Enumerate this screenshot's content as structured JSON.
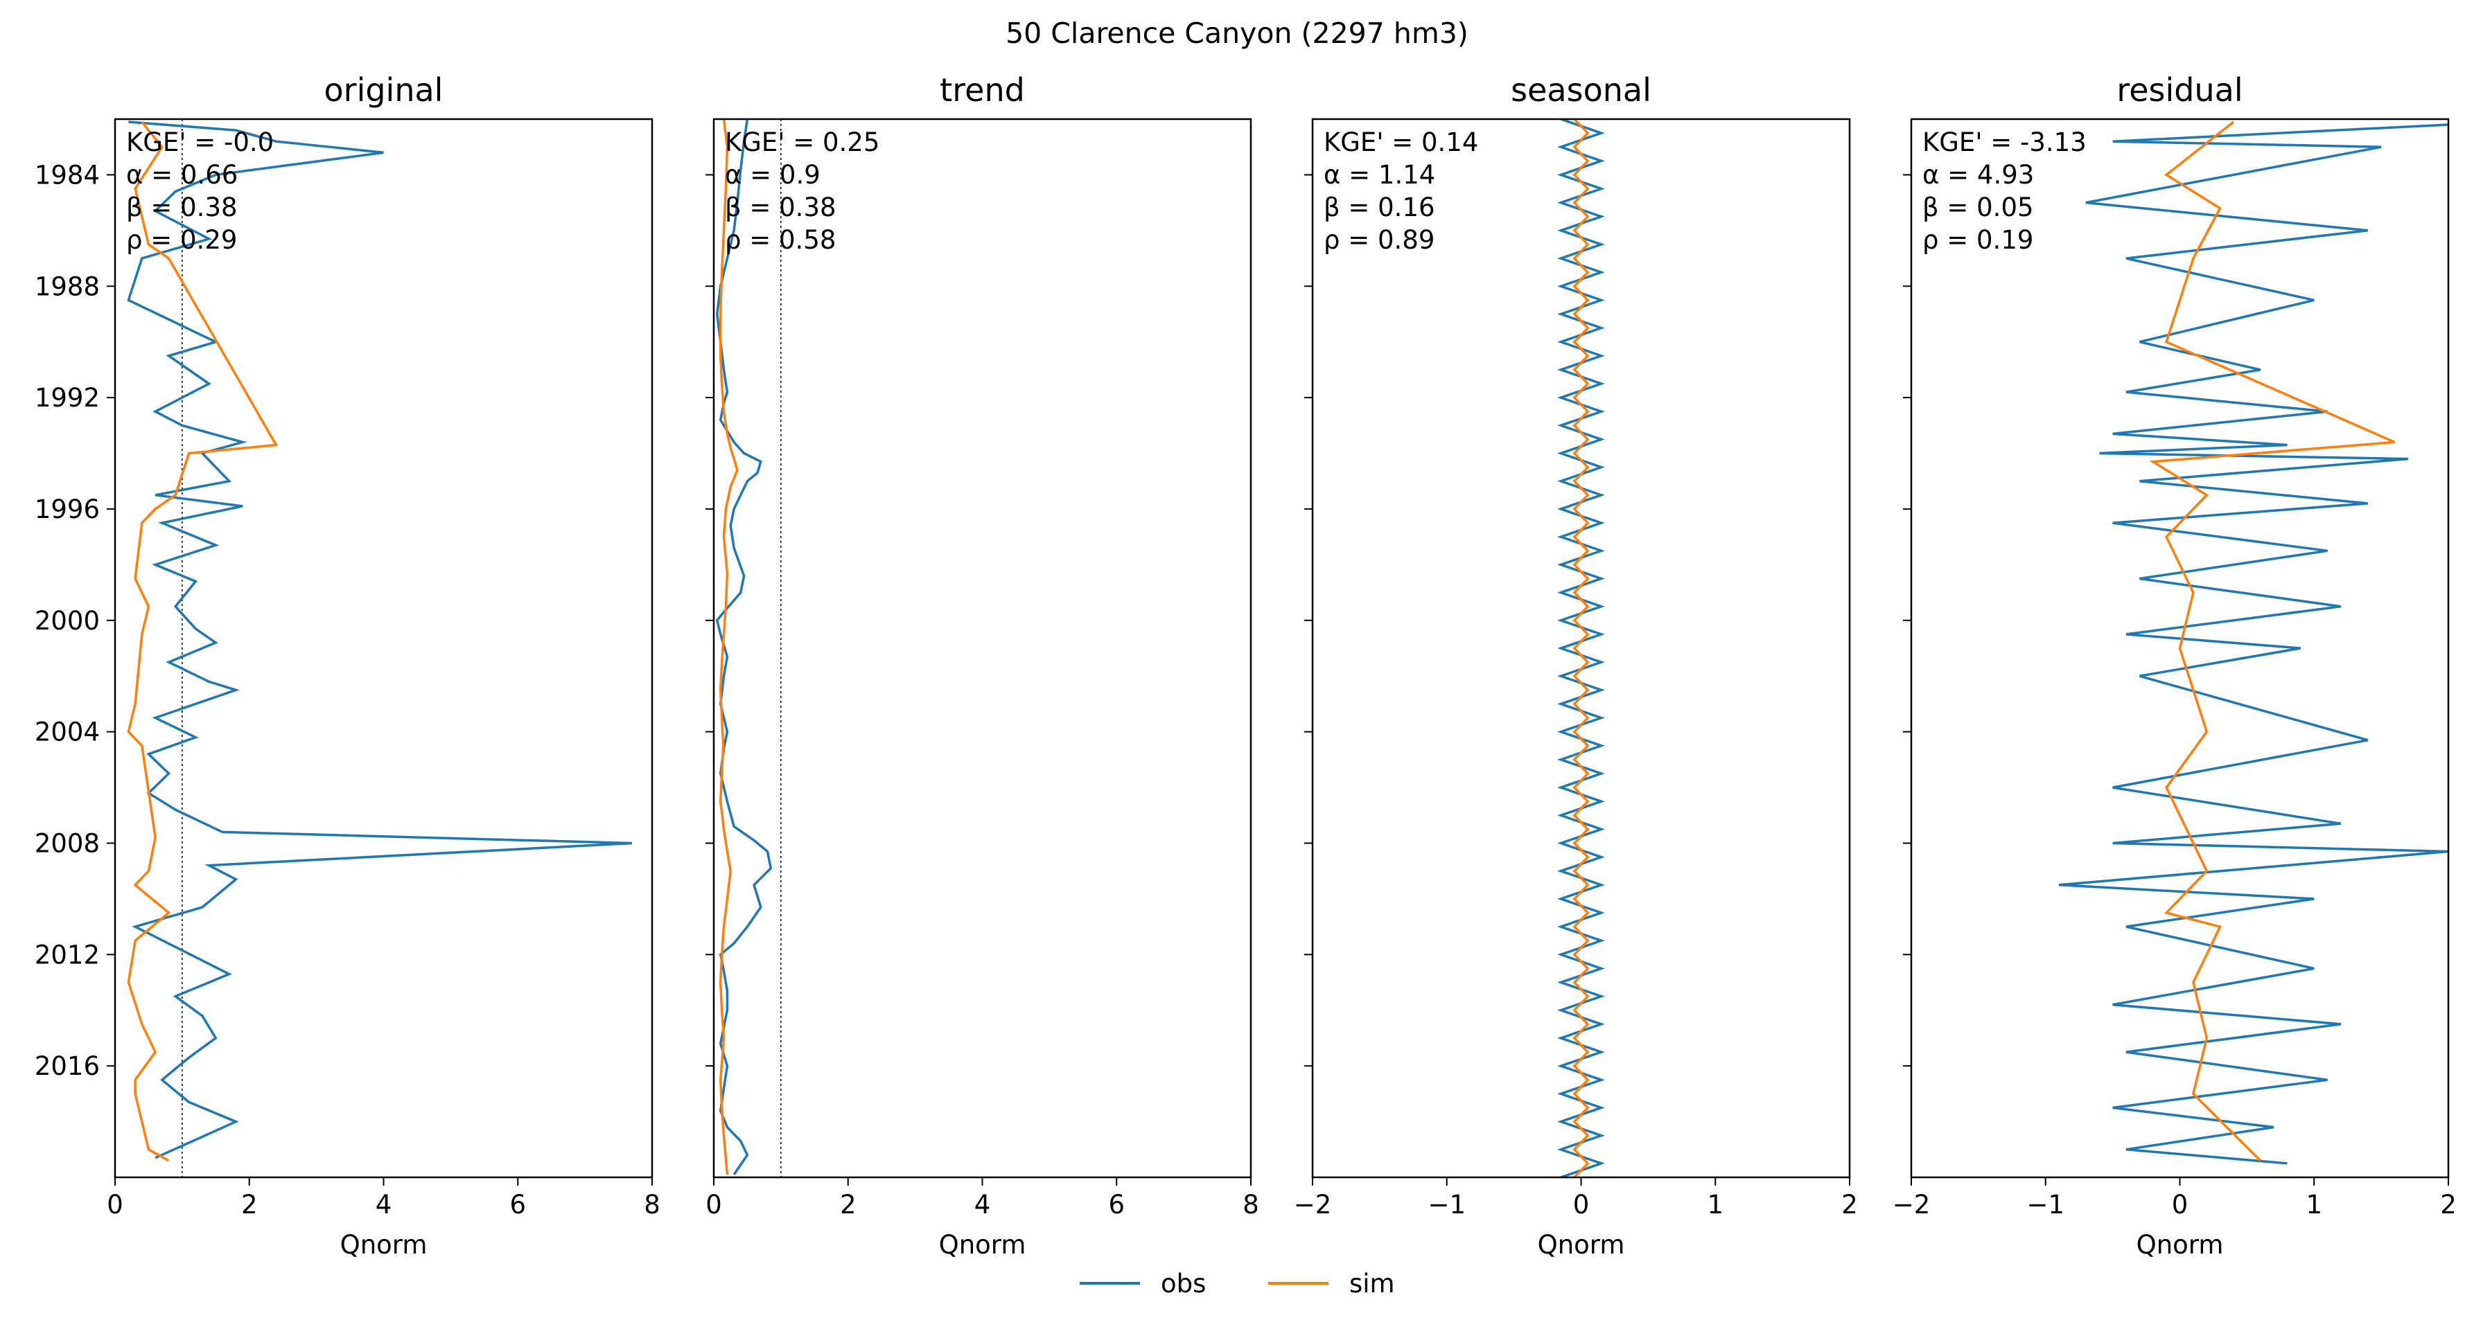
{
  "figure": {
    "suptitle": "50  Clarence Canyon (2297 hm3)",
    "colors": {
      "obs": "#1f77b4",
      "sim": "#ff7f0e",
      "obs_light": "#a6c8e3",
      "sim_light": "#ffc58a"
    }
  },
  "legend": {
    "entries": [
      "obs",
      "sim"
    ]
  },
  "chart_data": [
    {
      "type": "line",
      "title": "original",
      "xlabel": "Qnorm",
      "xlim": [
        0,
        8
      ],
      "xticks": [
        "0",
        "2",
        "4",
        "6",
        "8"
      ],
      "ylim": [
        "1982-01",
        "2020-01"
      ],
      "yticks": [
        "1984",
        "1988",
        "1992",
        "1996",
        "2000",
        "2004",
        "2008",
        "2012",
        "2016"
      ],
      "reference_line_x": 1,
      "stats": [
        "KGE' = -0.0",
        "α = 0.66",
        "β = 0.38",
        "ρ = 0.29"
      ],
      "series": [
        {
          "name": "obs",
          "x": [
            0.2,
            1.8,
            2.4,
            4.0,
            1.5,
            0.9,
            0.6,
            1.4,
            0.4,
            0.2,
            1.5,
            0.8,
            1.4,
            0.6,
            1.0,
            1.9,
            1.3,
            1.7,
            0.6,
            1.9,
            0.7,
            1.5,
            0.6,
            1.2,
            0.9,
            1.2,
            1.5,
            0.8,
            1.4,
            1.8,
            0.6,
            1.2,
            0.5,
            0.8,
            0.5,
            0.9,
            1.6,
            7.7,
            1.4,
            1.8,
            1.3,
            0.3,
            1.7,
            0.9,
            1.3,
            1.5,
            1.1,
            0.7,
            1.1,
            1.8,
            0.6
          ],
          "y": [
            1982.1,
            1982.4,
            1982.8,
            1983.2,
            1984.0,
            1984.6,
            1985.3,
            1986.3,
            1987.0,
            1988.5,
            1990.0,
            1990.5,
            1991.5,
            1992.5,
            1993.0,
            1993.6,
            1994.0,
            1995.0,
            1995.5,
            1995.9,
            1996.5,
            1997.3,
            1998.0,
            1998.6,
            1999.5,
            2000.3,
            2000.8,
            2001.5,
            2002.2,
            2002.5,
            2003.5,
            2004.2,
            2004.8,
            2005.5,
            2006.2,
            2006.8,
            2007.6,
            2008.0,
            2008.8,
            2009.3,
            2010.3,
            2011.0,
            2012.7,
            2013.5,
            2014.2,
            2015.0,
            2015.7,
            2016.5,
            2017.3,
            2018.0,
            2019.3
          ]
        },
        {
          "name": "sim",
          "x": [
            0.4,
            0.7,
            0.3,
            0.4,
            0.5,
            0.8,
            2.4,
            1.1,
            0.9,
            0.6,
            0.4,
            0.3,
            0.5,
            0.4,
            0.3,
            0.2,
            0.4,
            0.6,
            0.5,
            0.3,
            0.8,
            0.3,
            0.2,
            0.4,
            0.6,
            0.3,
            0.3,
            0.4,
            0.5,
            0.8
          ],
          "y": [
            1982.1,
            1983.0,
            1984.5,
            1985.5,
            1986.5,
            1987.0,
            1993.7,
            1994.0,
            1995.5,
            1996.0,
            1996.5,
            1998.5,
            1999.5,
            2000.5,
            2003.0,
            2004.0,
            2004.5,
            2007.8,
            2009.0,
            2009.5,
            2010.5,
            2011.5,
            2013.0,
            2014.5,
            2015.5,
            2016.5,
            2017.0,
            2018.0,
            2019.0,
            2019.4
          ]
        }
      ]
    },
    {
      "type": "line",
      "title": "trend",
      "xlabel": "Qnorm",
      "xlim": [
        0,
        8
      ],
      "xticks": [
        "0",
        "2",
        "4",
        "6",
        "8"
      ],
      "ylim": [
        "1982-01",
        "2020-01"
      ],
      "yticks": [],
      "reference_line_x": 1,
      "stats": [
        "KGE' = 0.25",
        "α = 0.9",
        "β = 0.38",
        "ρ = 0.58"
      ],
      "series": [
        {
          "name": "obs",
          "x": [
            0.5,
            0.45,
            0.4,
            0.35,
            0.3,
            0.2,
            0.1,
            0.05,
            0.1,
            0.15,
            0.2,
            0.15,
            0.1,
            0.2,
            0.3,
            0.45,
            0.7,
            0.65,
            0.5,
            0.4,
            0.3,
            0.25,
            0.3,
            0.45,
            0.4,
            0.15,
            0.05,
            0.1,
            0.2,
            0.15,
            0.1,
            0.2,
            0.15,
            0.1,
            0.2,
            0.3,
            0.6,
            0.8,
            0.85,
            0.6,
            0.7,
            0.5,
            0.3,
            0.1,
            0.15,
            0.2,
            0.2,
            0.15,
            0.1,
            0.2,
            0.15,
            0.1,
            0.2,
            0.4,
            0.5,
            0.3
          ],
          "y": [
            1982.0,
            1982.8,
            1983.8,
            1985.0,
            1986.0,
            1987.0,
            1988.0,
            1989.0,
            1990.0,
            1991.0,
            1991.8,
            1992.2,
            1992.8,
            1993.2,
            1993.6,
            1994.0,
            1994.3,
            1994.7,
            1995.0,
            1995.5,
            1996.0,
            1996.6,
            1997.4,
            1998.4,
            1999.0,
            1999.7,
            2000.0,
            2000.5,
            2001.3,
            2002.0,
            2003.0,
            2004.0,
            2004.6,
            2005.5,
            2006.5,
            2007.4,
            2007.9,
            2008.3,
            2008.9,
            2009.5,
            2010.3,
            2011.0,
            2011.6,
            2012.0,
            2012.6,
            2013.3,
            2014.0,
            2014.6,
            2015.2,
            2016.0,
            2016.8,
            2017.6,
            2018.2,
            2018.7,
            2019.2,
            2019.9
          ]
        },
        {
          "name": "sim",
          "x": [
            0.15,
            0.2,
            0.18,
            0.15,
            0.12,
            0.1,
            0.1,
            0.12,
            0.15,
            0.2,
            0.25,
            0.3,
            0.35,
            0.25,
            0.18,
            0.15,
            0.2,
            0.18,
            0.15,
            0.12,
            0.1,
            0.12,
            0.14,
            0.12,
            0.1,
            0.15,
            0.2,
            0.25,
            0.2,
            0.15,
            0.12,
            0.1,
            0.12,
            0.15,
            0.1,
            0.12,
            0.15,
            0.2
          ],
          "y": [
            1982.0,
            1983.0,
            1984.5,
            1986.0,
            1987.5,
            1989.0,
            1990.5,
            1991.5,
            1992.5,
            1993.3,
            1993.8,
            1994.2,
            1994.6,
            1995.2,
            1996.0,
            1997.0,
            1998.3,
            1999.5,
            2000.5,
            2001.5,
            2002.5,
            2003.5,
            2004.5,
            2005.5,
            2006.5,
            2007.5,
            2008.3,
            2009.0,
            2010.0,
            2011.0,
            2012.0,
            2013.0,
            2014.0,
            2015.0,
            2016.5,
            2017.5,
            2018.5,
            2019.9
          ]
        }
      ]
    },
    {
      "type": "line",
      "title": "seasonal",
      "xlabel": "Qnorm",
      "xlim": [
        -2,
        2
      ],
      "xticks": [
        "−2",
        "−1",
        "0",
        "1",
        "2"
      ],
      "ylim": [
        "1982-01",
        "2020-01"
      ],
      "yticks": [],
      "stats": [
        "KGE' = 0.14",
        "α = 1.14",
        "β = 0.16",
        "ρ = 0.89"
      ],
      "series": [
        {
          "name": "obs",
          "seasonal_min": -0.15,
          "seasonal_max": 0.15,
          "period_years": 1.0
        },
        {
          "name": "sim",
          "seasonal_min": -0.05,
          "seasonal_max": 0.05,
          "period_years": 1.0
        }
      ]
    },
    {
      "type": "line",
      "title": "residual",
      "xlabel": "Qnorm",
      "xlim": [
        -2,
        2
      ],
      "xticks": [
        "−2",
        "−1",
        "0",
        "1",
        "2"
      ],
      "ylim": [
        "1982-01",
        "2020-01"
      ],
      "yticks": [],
      "stats": [
        "KGE' = -3.13",
        "α = 4.93",
        "β = 0.05",
        "ρ = 0.19"
      ],
      "series": [
        {
          "name": "obs",
          "x": [
            2.0,
            -0.5,
            1.5,
            -0.7,
            1.4,
            -0.4,
            1.0,
            -0.3,
            0.6,
            -0.4,
            1.1,
            -0.5,
            0.8,
            -0.6,
            1.7,
            -0.3,
            1.4,
            -0.5,
            1.1,
            -0.3,
            1.2,
            -0.4,
            0.9,
            -0.3,
            1.4,
            -0.5,
            1.2,
            -0.5,
            2.0,
            -0.9,
            1.0,
            -0.4,
            1.0,
            -0.5,
            1.2,
            -0.4,
            1.1,
            -0.5,
            0.7,
            -0.4,
            0.8
          ],
          "y": [
            1982.2,
            1982.8,
            1983.0,
            1985.0,
            1986.0,
            1987.0,
            1988.5,
            1990.0,
            1991.0,
            1991.8,
            1992.5,
            1993.3,
            1993.7,
            1994.0,
            1994.2,
            1995.0,
            1995.8,
            1996.5,
            1997.5,
            1998.5,
            1999.5,
            2000.5,
            2001.0,
            2002.0,
            2004.3,
            2006.0,
            2007.3,
            2008.0,
            2008.3,
            2009.5,
            2010.0,
            2011.0,
            2012.5,
            2013.8,
            2014.5,
            2015.5,
            2016.5,
            2017.5,
            2018.2,
            2019.0,
            2019.5
          ]
        },
        {
          "name": "sim",
          "x": [
            0.4,
            -0.1,
            0.3,
            0.1,
            -0.1,
            1.6,
            -0.2,
            0.2,
            -0.1,
            0.1,
            0.0,
            0.2,
            -0.1,
            0.1,
            0.2,
            -0.1,
            0.3,
            0.1,
            0.2,
            0.1,
            0.6
          ],
          "y": [
            1982.1,
            1984.0,
            1985.2,
            1987.0,
            1990.0,
            1993.6,
            1994.3,
            1995.5,
            1997.0,
            1999.0,
            2001.0,
            2004.0,
            2006.0,
            2008.0,
            2009.0,
            2010.5,
            2011.0,
            2013.0,
            2015.0,
            2017.0,
            2019.4
          ]
        }
      ]
    }
  ]
}
